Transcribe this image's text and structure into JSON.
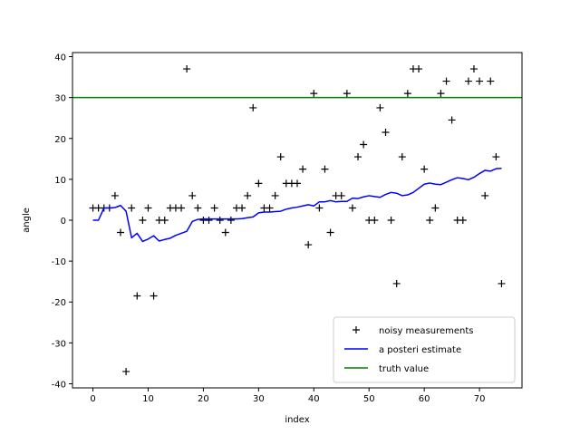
{
  "chart_data": {
    "type": "line",
    "xlabel": "index",
    "ylabel": "angle",
    "xlim": [
      -3.7,
      77.7
    ],
    "ylim": [
      -41,
      41
    ],
    "xticks": [
      0,
      10,
      20,
      30,
      40,
      50,
      60,
      70
    ],
    "yticks": [
      -40,
      -30,
      -20,
      -10,
      0,
      10,
      20,
      30,
      40
    ],
    "grid": false,
    "legend_position": "lower-right",
    "series": [
      {
        "name": "noisy measurements",
        "kind": "markers",
        "marker": "+",
        "color": "#000000",
        "x": [
          0,
          1,
          2,
          3,
          4,
          5,
          6,
          7,
          8,
          9,
          10,
          11,
          12,
          13,
          14,
          15,
          16,
          17,
          18,
          19,
          20,
          21,
          22,
          23,
          24,
          25,
          26,
          27,
          28,
          29,
          30,
          31,
          32,
          33,
          34,
          35,
          36,
          37,
          38,
          39,
          40,
          41,
          42,
          43,
          44,
          45,
          46,
          47,
          48,
          49,
          50,
          51,
          52,
          53,
          54,
          55,
          56,
          57,
          58,
          59,
          60,
          61,
          62,
          63,
          64,
          65,
          66,
          67,
          68,
          69,
          70,
          71,
          72,
          73,
          74
        ],
        "y": [
          3,
          3,
          3,
          3,
          6,
          -3,
          -37,
          3,
          -18.5,
          0,
          3,
          -18.5,
          0,
          0,
          3,
          3,
          3,
          37,
          6,
          3,
          0,
          0,
          3,
          0,
          -3,
          0,
          3,
          3,
          6,
          27.5,
          9,
          3,
          3,
          6,
          15.5,
          9,
          9,
          9,
          12.5,
          -6,
          31,
          3,
          12.5,
          -3,
          6,
          6,
          31,
          3,
          15.5,
          18.5,
          0,
          0,
          27.5,
          21.5,
          0,
          -15.5,
          15.5,
          31,
          37,
          37,
          12.5,
          0,
          3,
          31,
          34,
          24.5,
          0,
          0,
          34,
          37,
          34,
          6,
          34,
          15.5,
          -15.5
        ]
      },
      {
        "name": "a posteri estimate",
        "kind": "line",
        "color": "#0000ff",
        "x": [
          0,
          1,
          2,
          3,
          4,
          5,
          6,
          7,
          8,
          9,
          10,
          11,
          12,
          13,
          14,
          15,
          16,
          17,
          18,
          19,
          20,
          21,
          22,
          23,
          24,
          25,
          26,
          27,
          28,
          29,
          30,
          31,
          32,
          33,
          34,
          35,
          36,
          37,
          38,
          39,
          40,
          41,
          42,
          43,
          44,
          45,
          46,
          47,
          48,
          49,
          50,
          51,
          52,
          53,
          54,
          55,
          56,
          57,
          58,
          59,
          60,
          61,
          62,
          63,
          64,
          65,
          66,
          67,
          68,
          69,
          70,
          71,
          72,
          73,
          74
        ],
        "y": [
          0,
          0,
          3,
          3,
          3.1,
          3.6,
          2.2,
          -4.3,
          -3.2,
          -5.2,
          -4.6,
          -3.8,
          -5.1,
          -4.7,
          -4.4,
          -3.7,
          -3.2,
          -2.7,
          -0.3,
          0.2,
          0.3,
          0.3,
          0.3,
          0.3,
          0.3,
          0.3,
          0.3,
          0.4,
          0.6,
          0.8,
          1.8,
          2,
          2,
          2.1,
          2.2,
          2.7,
          3,
          3.2,
          3.5,
          3.8,
          3.5,
          4.5,
          4.5,
          4.8,
          4.5,
          4.6,
          4.6,
          5.4,
          5.3,
          5.7,
          6,
          5.8,
          5.6,
          6.3,
          6.8,
          6.6,
          6,
          6.2,
          6.8,
          7.8,
          8.8,
          9.1,
          8.8,
          8.7,
          9.3,
          9.9,
          10.4,
          10.2,
          9.9,
          10.5,
          11.4,
          12.2,
          12,
          12.6,
          12.7
        ]
      },
      {
        "name": "truth value",
        "kind": "hline",
        "color": "#008000",
        "y": 30
      }
    ]
  }
}
